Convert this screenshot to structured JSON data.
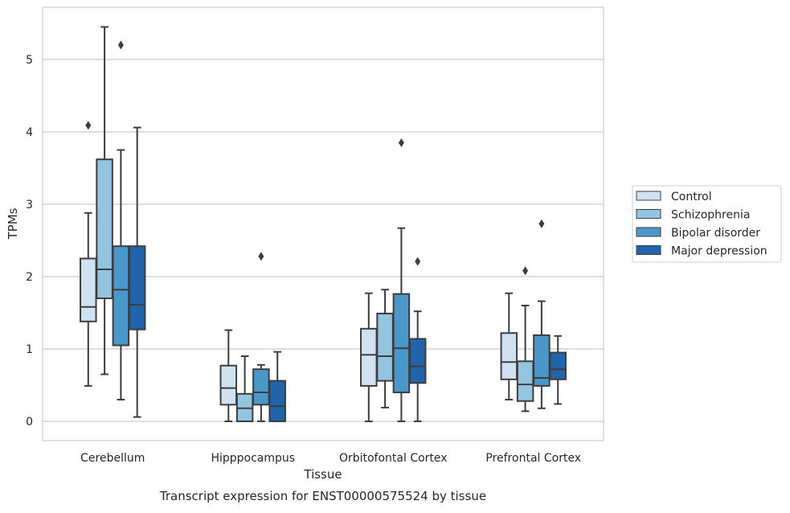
{
  "chart_data": {
    "type": "box",
    "caption": "Transcript expression for ENST00000575524 by tissue",
    "xlabel": "Tissue",
    "ylabel": "TPMs",
    "ylim": [
      -0.27,
      5.72
    ],
    "yticks": [
      "0",
      "1",
      "2",
      "3",
      "4",
      "5"
    ],
    "grid": true,
    "legend_position": "right",
    "categories": [
      "Cerebellum",
      "Hipppocampus",
      "Orbitofontal Cortex",
      "Prefrontal Cortex"
    ],
    "series": [
      {
        "name": "Control",
        "color": "#d0e1f2",
        "boxes": [
          {
            "min": 0.49,
            "q1": 1.38,
            "median": 1.58,
            "q3": 2.25,
            "max": 2.88,
            "outliers": [
              4.09
            ]
          },
          {
            "min": 0.0,
            "q1": 0.23,
            "median": 0.46,
            "q3": 0.77,
            "max": 1.26,
            "outliers": []
          },
          {
            "min": 0.0,
            "q1": 0.49,
            "median": 0.92,
            "q3": 1.28,
            "max": 1.77,
            "outliers": []
          },
          {
            "min": 0.3,
            "q1": 0.58,
            "median": 0.82,
            "q3": 1.22,
            "max": 1.77,
            "outliers": []
          }
        ]
      },
      {
        "name": "Schizophrenia",
        "color": "#94c4df",
        "boxes": [
          {
            "min": 0.65,
            "q1": 1.7,
            "median": 2.1,
            "q3": 3.62,
            "max": 5.45,
            "outliers": []
          },
          {
            "min": 0.0,
            "q1": 0.0,
            "median": 0.18,
            "q3": 0.38,
            "max": 0.9,
            "outliers": []
          },
          {
            "min": 0.19,
            "q1": 0.56,
            "median": 0.9,
            "q3": 1.49,
            "max": 1.82,
            "outliers": []
          },
          {
            "min": 0.14,
            "q1": 0.28,
            "median": 0.51,
            "q3": 0.83,
            "max": 1.6,
            "outliers": [
              2.08
            ]
          }
        ]
      },
      {
        "name": "Bipolar disorder",
        "color": "#4a98c9",
        "boxes": [
          {
            "min": 0.3,
            "q1": 1.05,
            "median": 1.82,
            "q3": 2.42,
            "max": 3.75,
            "outliers": [
              5.2
            ]
          },
          {
            "min": 0.0,
            "q1": 0.23,
            "median": 0.4,
            "q3": 0.72,
            "max": 0.78,
            "outliers": [
              2.28
            ]
          },
          {
            "min": 0.0,
            "q1": 0.4,
            "median": 1.01,
            "q3": 1.76,
            "max": 2.67,
            "outliers": [
              3.85
            ]
          },
          {
            "min": 0.18,
            "q1": 0.49,
            "median": 0.6,
            "q3": 1.19,
            "max": 1.66,
            "outliers": [
              2.73
            ]
          }
        ]
      },
      {
        "name": "Major depression",
        "color": "#2164ab",
        "boxes": [
          {
            "min": 0.06,
            "q1": 1.27,
            "median": 1.61,
            "q3": 2.42,
            "max": 4.06,
            "outliers": []
          },
          {
            "min": 0.0,
            "q1": 0.0,
            "median": 0.21,
            "q3": 0.56,
            "max": 0.96,
            "outliers": []
          },
          {
            "min": 0.0,
            "q1": 0.53,
            "median": 0.76,
            "q3": 1.14,
            "max": 1.52,
            "outliers": [
              2.21
            ]
          },
          {
            "min": 0.24,
            "q1": 0.58,
            "median": 0.72,
            "q3": 0.95,
            "max": 1.18,
            "outliers": []
          }
        ]
      }
    ]
  }
}
